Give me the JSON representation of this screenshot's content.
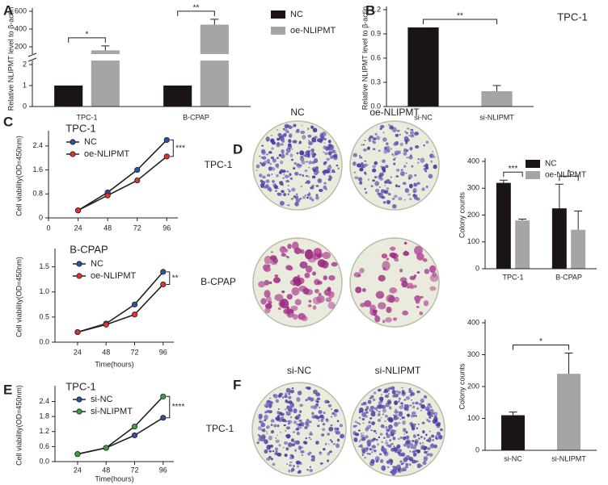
{
  "chart_data": [
    {
      "panel": "A",
      "type": "bar",
      "y_label": "Relative NLIPMT level to β-actin",
      "categories": [
        "TPC-1",
        "B-CPAP"
      ],
      "series": [
        {
          "name": "NC",
          "color": "#1a1414",
          "values": [
            1,
            1
          ]
        },
        {
          "name": "oe-NLIPMT",
          "color": "#a5a5a5",
          "values": [
            160,
            450
          ],
          "errors": [
            50,
            60
          ]
        }
      ],
      "ylim": [
        0,
        600
      ],
      "yticks": [
        0,
        1,
        2,
        200,
        400,
        600
      ],
      "axis_break": true,
      "significance": [
        "*",
        "**"
      ]
    },
    {
      "panel": "B",
      "type": "bar",
      "y_label": "Relative NLIPMT level to β-actin",
      "subtitle": "TPC-1",
      "categories": [
        "si-NC",
        "si-NLIPMT"
      ],
      "values": [
        0.98,
        0.19
      ],
      "errors": [
        null,
        0.07
      ],
      "colors": [
        "#1a1414",
        "#a5a5a5"
      ],
      "ylim": [
        0,
        1.2
      ],
      "yticks": [
        {
          "value": 0,
          "label": "0.0"
        },
        0.3,
        0.6,
        0.9,
        1.2
      ],
      "significance": "**"
    },
    {
      "panel": "C",
      "type": "line",
      "subtitle": "TPC-1",
      "y_label": "Cell viability(OD=450nm)",
      "x": [
        24,
        48,
        72,
        96
      ],
      "xlim": [
        0,
        105
      ],
      "xticks": [
        0,
        24,
        48,
        72,
        96
      ],
      "series": [
        {
          "name": "NC",
          "color": "#2f4fa0",
          "values": [
            0.25,
            0.85,
            1.6,
            2.6
          ]
        },
        {
          "name": "oe-NLIPMT",
          "color": "#e03030",
          "values": [
            0.25,
            0.75,
            1.25,
            2.05
          ]
        }
      ],
      "ylim": [
        0,
        2.8
      ],
      "yticks": [
        0,
        0.8,
        1.6,
        2.4
      ],
      "significance": "***"
    },
    {
      "type": "line",
      "subtitle": "B-CPAP",
      "y_label": "Cell viability(OD=450nm)",
      "x_label": "Time(hours)",
      "x": [
        24,
        48,
        72,
        96
      ],
      "xlim": [
        5,
        105
      ],
      "xticks": [
        24,
        48,
        72,
        96
      ],
      "series": [
        {
          "name": "NC",
          "color": "#2f4fa0",
          "values": [
            0.2,
            0.37,
            0.75,
            1.4
          ]
        },
        {
          "name": "oe-NLIPMT",
          "color": "#e03030",
          "values": [
            0.2,
            0.35,
            0.55,
            1.15
          ]
        }
      ],
      "ylim": [
        0,
        1.8
      ],
      "yticks": [
        {
          "value": 0,
          "label": "0.0"
        },
        0.5,
        {
          "value": 1,
          "label": "1.0"
        },
        1.5
      ],
      "significance": "**"
    },
    {
      "panel": "E",
      "type": "line",
      "subtitle": "TPC-1",
      "y_label": "Cell viability(OD=450nm)",
      "x_label": "Time(hours)",
      "x": [
        24,
        48,
        72,
        96
      ],
      "xlim": [
        5,
        105
      ],
      "xticks": [
        24,
        48,
        72,
        96
      ],
      "series": [
        {
          "name": "si-NC",
          "color": "#2f4fa0",
          "values": [
            0.3,
            0.55,
            1.05,
            1.75
          ]
        },
        {
          "name": "si-NLIPMT",
          "color": "#3aa040",
          "values": [
            0.3,
            0.55,
            1.4,
            2.6
          ]
        }
      ],
      "ylim": [
        0,
        2.9
      ],
      "yticks": [
        {
          "value": 0,
          "label": "0.0"
        },
        0.6,
        1.2,
        1.8,
        2.4
      ],
      "significance": "****"
    },
    {
      "panel": "D",
      "type": "bar",
      "y_label": "Colony counts",
      "categories": [
        "TPC-1",
        "B-CPAP"
      ],
      "series": [
        {
          "name": "NC",
          "color": "#1a1414",
          "values": [
            320,
            225
          ],
          "errors": [
            10,
            90
          ]
        },
        {
          "name": "oe-NLIPMT",
          "color": "#a5a5a5",
          "values": [
            180,
            145
          ],
          "errors": [
            5,
            70
          ]
        }
      ],
      "ylim": [
        0,
        400
      ],
      "yticks": [
        0,
        100,
        200,
        300,
        400
      ],
      "significance": [
        "***",
        "*"
      ]
    },
    {
      "panel": "F",
      "type": "bar",
      "y_label": "Colony counts",
      "categories": [
        "si-NC",
        "si-NLIPMT"
      ],
      "values": [
        110,
        240
      ],
      "errors": [
        10,
        65
      ],
      "colors": [
        "#1a1414",
        "#a5a5a5"
      ],
      "ylim": [
        0,
        400
      ],
      "yticks": [
        0,
        100,
        200,
        300,
        400
      ],
      "significance": "*"
    }
  ],
  "plates": [
    {
      "column_labels": [
        "NC",
        "oe-NLIPMT"
      ],
      "row_labels": [
        "TPC-1",
        "B-CPAP"
      ]
    },
    {
      "column_labels": [
        "si-NC",
        "si-NLIPMT"
      ],
      "row_labels": [
        "TPC-1"
      ]
    }
  ]
}
